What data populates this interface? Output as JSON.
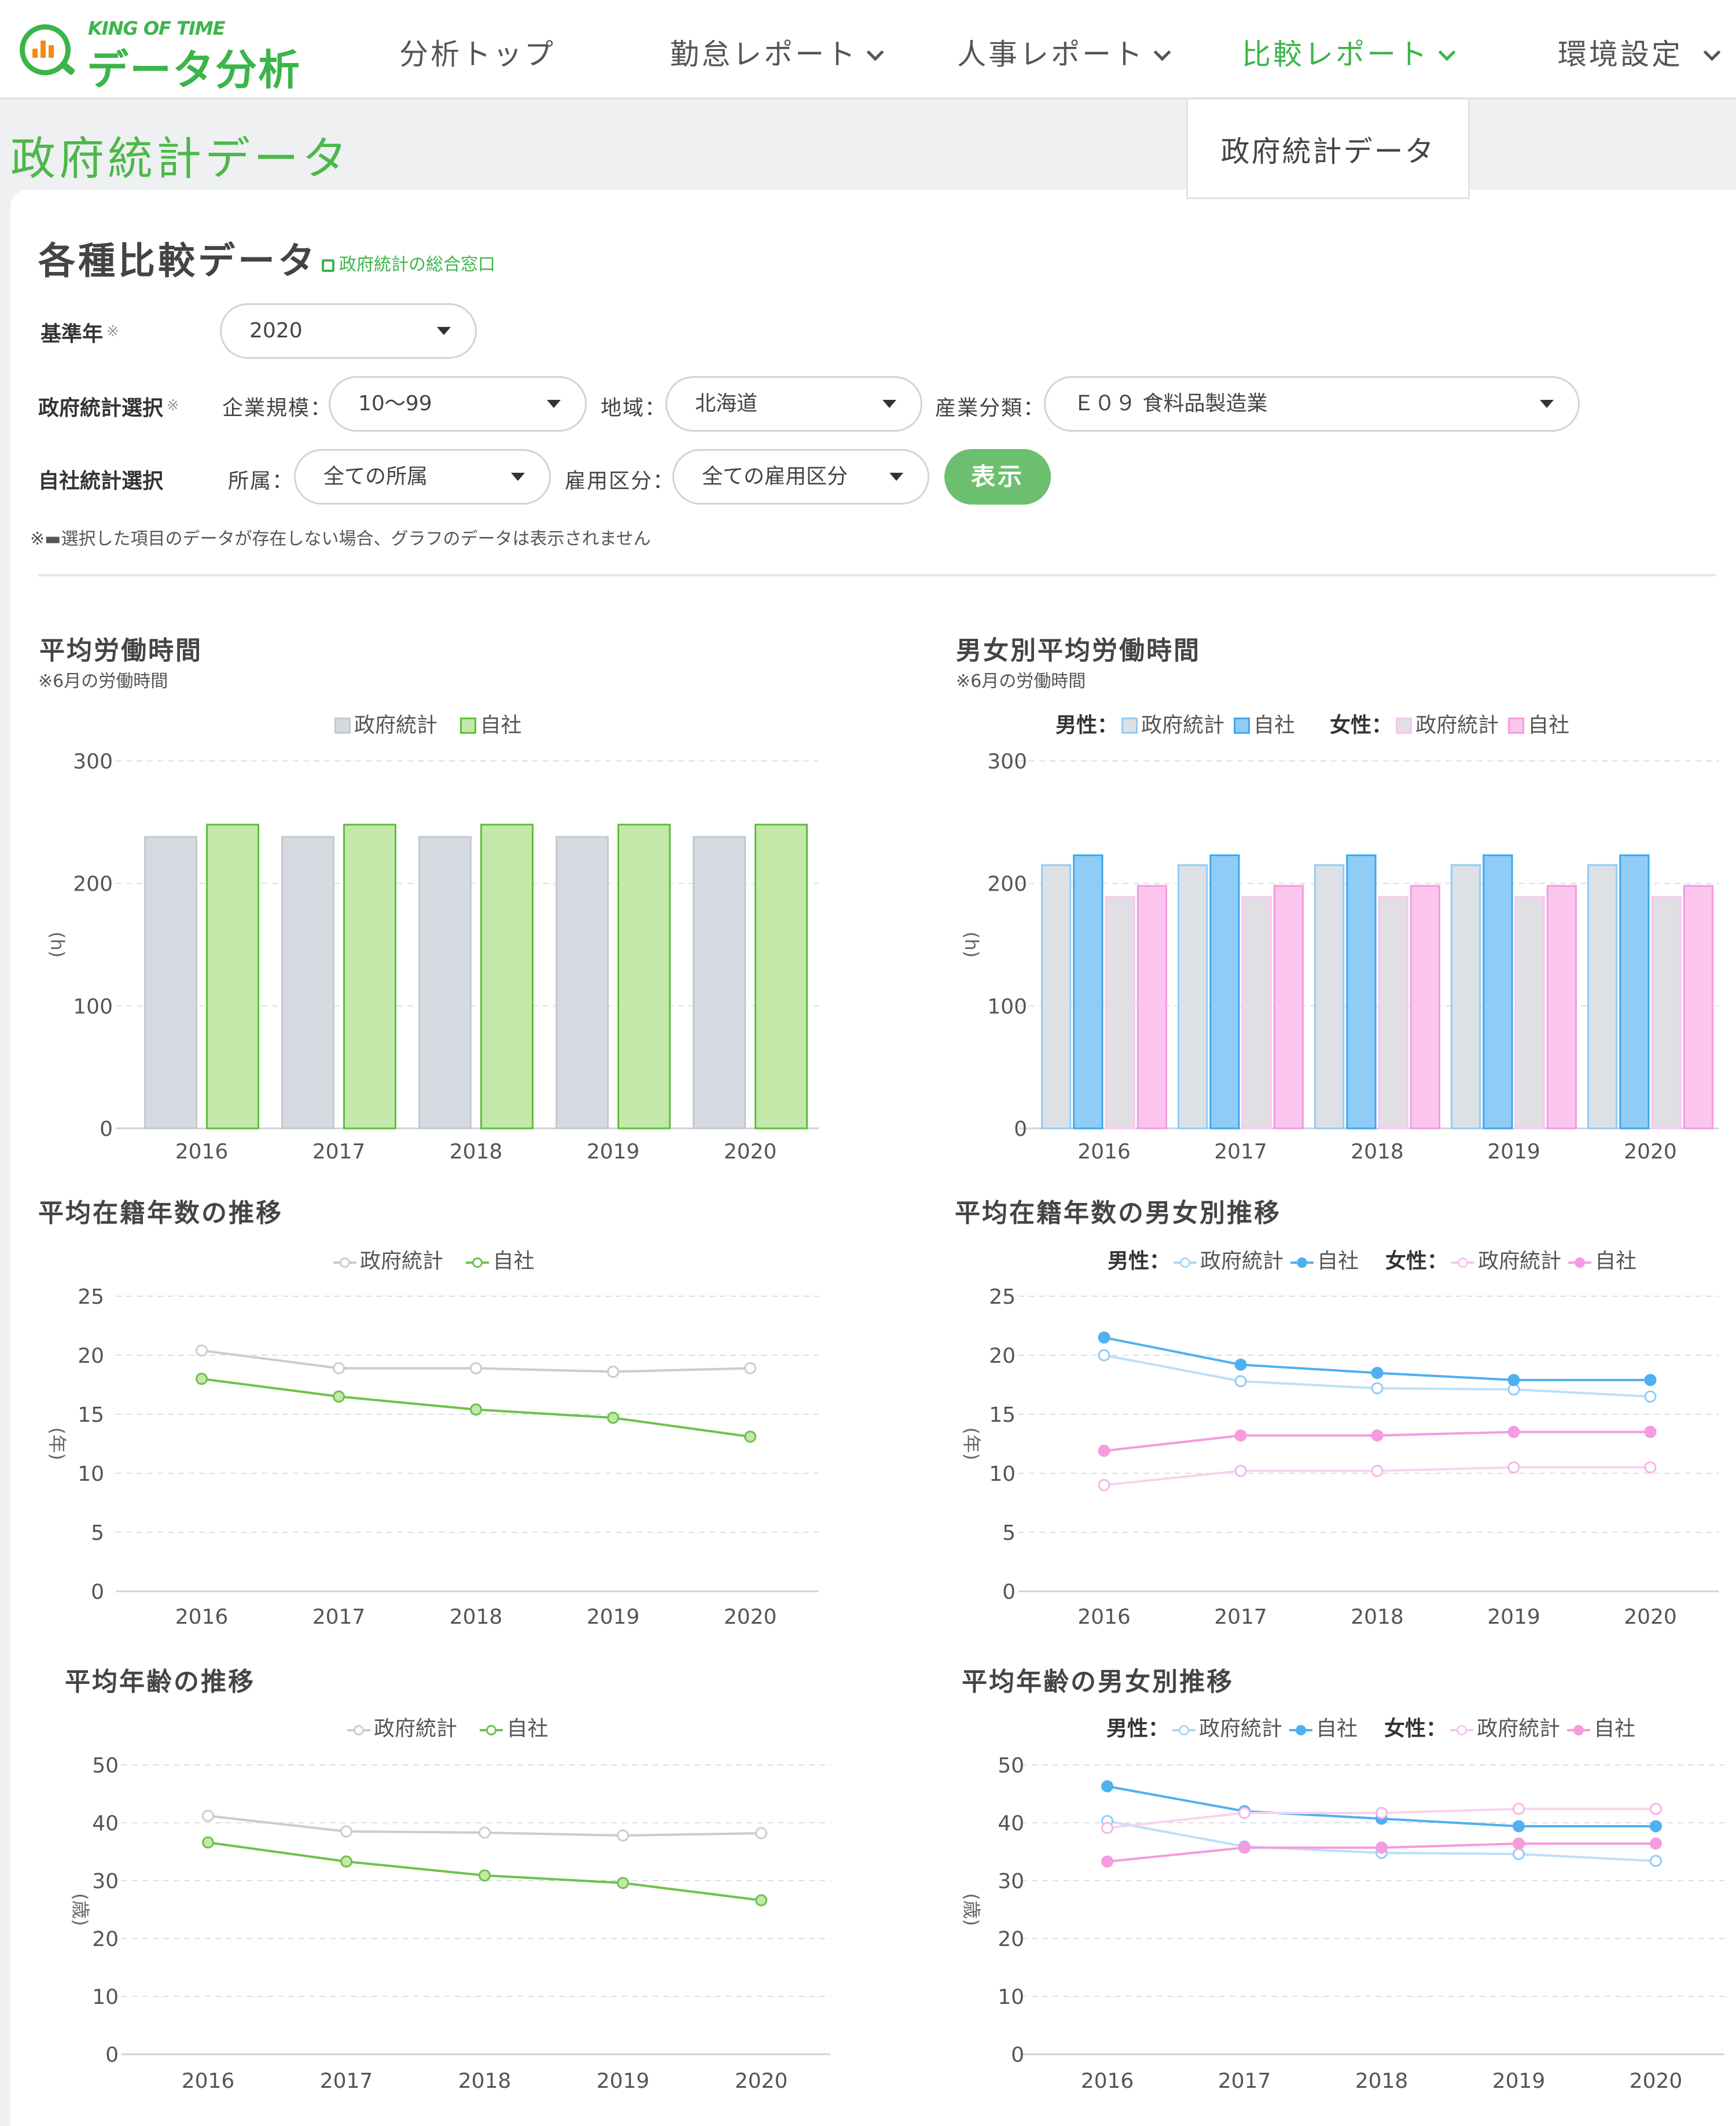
{
  "header": {
    "logo_small": "KING OF TIME",
    "logo_main": "データ分析",
    "nav": [
      {
        "label": "分析トップ",
        "dropdown": false
      },
      {
        "label": "勤怠レポート",
        "dropdown": true
      },
      {
        "label": "人事レポート",
        "dropdown": true
      },
      {
        "label": "比較レポート",
        "dropdown": true,
        "active": true
      },
      {
        "label": "環境設定",
        "dropdown": true
      }
    ],
    "submenu_item": "政府統計データ"
  },
  "page_title": "政府統計データ",
  "section": {
    "title": "各種比較データ",
    "link": "政府統計の総合窓口"
  },
  "form": {
    "base_year_label": "基準年",
    "base_year_value": "2020",
    "gov_label": "政府統計選択",
    "company_size_label": "企業規模：",
    "company_size_value": "10〜99",
    "region_label": "地域：",
    "region_value": "北海道",
    "industry_label": "産業分類：",
    "industry_value": "Ｅ０９ 食料品製造業",
    "own_label": "自社統計選択",
    "dept_label": "所属：",
    "dept_value": "全ての所属",
    "employment_label": "雇用区分：",
    "employment_value": "全ての雇用区分",
    "required_mark": "※",
    "show_button": "表示",
    "note": "※▬選択した項目のデータが存在しない場合、グラフのデータは表示されません"
  },
  "colors": {
    "brand_green": "#3bb54a",
    "gov_gray": "#d5d9e0",
    "own_green": "#c3e8a9",
    "male_blue": "#8fcdf7",
    "female_pink": "#fbc5ee"
  },
  "legend_labels": {
    "gov": "政府統計",
    "own": "自社",
    "male": "男性：",
    "female": "女性："
  },
  "charts": {
    "avg_hours": {
      "title": "平均労働時間",
      "sub": "※6月の労働時間"
    },
    "gender_hours": {
      "title": "男女別平均労働時間",
      "sub": "※6月の労働時間"
    },
    "tenure": {
      "title": "平均在籍年数の推移"
    },
    "gender_tenure": {
      "title": "平均在籍年数の男女別推移"
    },
    "age": {
      "title": "平均年齢の推移"
    },
    "gender_age": {
      "title": "平均年齢の男女別推移"
    }
  },
  "chart_data": [
    {
      "type": "bar",
      "title": "平均労働時間",
      "subtitle": "※6月の労働時間",
      "ylabel": "(h)",
      "categories": [
        "2016",
        "2017",
        "2018",
        "2019",
        "2020"
      ],
      "ylim": [
        0,
        300
      ],
      "yticks": [
        0,
        100,
        200,
        300
      ],
      "series": [
        {
          "name": "政府統計",
          "values": [
            238,
            238,
            238,
            238,
            238
          ]
        },
        {
          "name": "自社",
          "values": [
            248,
            248,
            248,
            248,
            248
          ]
        }
      ],
      "grid": true,
      "legend": "top-center"
    },
    {
      "type": "bar",
      "title": "男女別平均労働時間",
      "subtitle": "※6月の労働時間",
      "ylabel": "(h)",
      "categories": [
        "2016",
        "2017",
        "2018",
        "2019",
        "2020"
      ],
      "ylim": [
        0,
        300
      ],
      "yticks": [
        0,
        100,
        200,
        300
      ],
      "series": [
        {
          "name": "男性 政府統計",
          "values": [
            215,
            215,
            215,
            215,
            215
          ]
        },
        {
          "name": "男性 自社",
          "values": [
            223,
            223,
            223,
            223,
            223
          ]
        },
        {
          "name": "女性 政府統計",
          "values": [
            189,
            189,
            189,
            189,
            189
          ]
        },
        {
          "name": "女性 自社",
          "values": [
            198,
            198,
            198,
            198,
            198
          ]
        }
      ],
      "grid": true,
      "legend": "top-center"
    },
    {
      "type": "line",
      "title": "平均在籍年数の推移",
      "ylabel": "(年)",
      "x": [
        "2016",
        "2017",
        "2018",
        "2019",
        "2020"
      ],
      "ylim": [
        0,
        25
      ],
      "yticks": [
        0,
        5,
        10,
        15,
        20,
        25
      ],
      "series": [
        {
          "name": "政府統計",
          "values": [
            20.4,
            18.9,
            18.9,
            18.6,
            18.9
          ]
        },
        {
          "name": "自社",
          "values": [
            18.0,
            16.5,
            15.4,
            14.7,
            13.1
          ]
        }
      ],
      "grid": true,
      "legend": "top-center"
    },
    {
      "type": "line",
      "title": "平均在籍年数の男女別推移",
      "ylabel": "(年)",
      "x": [
        "2016",
        "2017",
        "2018",
        "2019",
        "2020"
      ],
      "ylim": [
        0,
        25
      ],
      "yticks": [
        0,
        5,
        10,
        15,
        20,
        25
      ],
      "series": [
        {
          "name": "男性 政府統計",
          "values": [
            20.0,
            17.8,
            17.2,
            17.1,
            16.5
          ]
        },
        {
          "name": "男性 自社",
          "values": [
            21.5,
            19.2,
            18.5,
            17.9,
            17.9
          ]
        },
        {
          "name": "女性 政府統計",
          "values": [
            9.0,
            10.2,
            10.2,
            10.5,
            10.5
          ]
        },
        {
          "name": "女性 自社",
          "values": [
            11.9,
            13.2,
            13.2,
            13.5,
            13.5
          ]
        }
      ],
      "grid": true,
      "legend": "top-center"
    },
    {
      "type": "line",
      "title": "平均年齢の推移",
      "ylabel": "(歳)",
      "x": [
        "2016",
        "2017",
        "2018",
        "2019",
        "2020"
      ],
      "ylim": [
        0,
        50
      ],
      "yticks": [
        0,
        10,
        20,
        30,
        40,
        50
      ],
      "series": [
        {
          "name": "政府統計",
          "values": [
            41.2,
            38.5,
            38.3,
            37.8,
            38.2
          ]
        },
        {
          "name": "自社",
          "values": [
            36.6,
            33.3,
            30.9,
            29.6,
            26.6
          ]
        }
      ],
      "grid": true,
      "legend": "top-center"
    },
    {
      "type": "line",
      "title": "平均年齢の男女別推移",
      "ylabel": "(歳)",
      "x": [
        "2016",
        "2017",
        "2018",
        "2019",
        "2020"
      ],
      "ylim": [
        0,
        50
      ],
      "yticks": [
        0,
        10,
        20,
        30,
        40,
        50
      ],
      "series": [
        {
          "name": "男性 政府統計",
          "values": [
            40.3,
            35.9,
            34.8,
            34.6,
            33.4
          ]
        },
        {
          "name": "男性 自社",
          "values": [
            46.3,
            42.0,
            40.7,
            39.4,
            39.4
          ]
        },
        {
          "name": "女性 政府統計",
          "values": [
            39.1,
            41.7,
            41.7,
            42.4,
            42.4
          ]
        },
        {
          "name": "女性 自社",
          "values": [
            33.3,
            35.7,
            35.7,
            36.4,
            36.4
          ]
        }
      ],
      "grid": true,
      "legend": "top-center"
    }
  ]
}
